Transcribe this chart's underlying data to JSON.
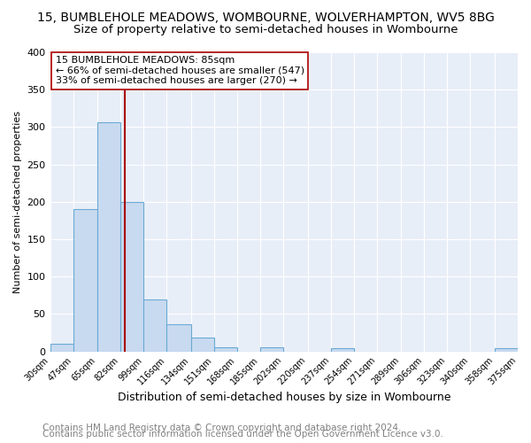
{
  "title": "15, BUMBLEHOLE MEADOWS, WOMBOURNE, WOLVERHAMPTON, WV5 8BG",
  "subtitle": "Size of property relative to semi-detached houses in Wombourne",
  "xlabel": "Distribution of semi-detached houses by size in Wombourne",
  "ylabel": "Number of semi-detached properties",
  "bin_edges": [
    30,
    47,
    65,
    82,
    99,
    116,
    134,
    151,
    168,
    185,
    202,
    220,
    237,
    254,
    271,
    289,
    306,
    323,
    340,
    358,
    375
  ],
  "bin_counts": [
    10,
    190,
    307,
    200,
    70,
    36,
    18,
    6,
    0,
    5,
    0,
    0,
    4,
    0,
    0,
    0,
    0,
    0,
    0,
    4
  ],
  "bar_color": "#c8daf0",
  "bar_edge_color": "#6aaad4",
  "property_size": 85,
  "vline_color": "#aa0000",
  "annotation_text": "15 BUMBLEHOLE MEADOWS: 85sqm\n← 66% of semi-detached houses are smaller (547)\n33% of semi-detached houses are larger (270) →",
  "annotation_box_edge_color": "#aa0000",
  "ylim": [
    0,
    400
  ],
  "yticks": [
    0,
    50,
    100,
    150,
    200,
    250,
    300,
    350,
    400
  ],
  "tick_labels": [
    "30sqm",
    "47sqm",
    "65sqm",
    "82sqm",
    "99sqm",
    "116sqm",
    "134sqm",
    "151sqm",
    "168sqm",
    "185sqm",
    "202sqm",
    "220sqm",
    "237sqm",
    "254sqm",
    "271sqm",
    "289sqm",
    "306sqm",
    "323sqm",
    "340sqm",
    "358sqm",
    "375sqm"
  ],
  "footer1": "Contains HM Land Registry data © Crown copyright and database right 2024.",
  "footer2": "Contains public sector information licensed under the Open Government Licence v3.0.",
  "background_color": "#ffffff",
  "plot_bg_color": "#e8eef8",
  "title_fontsize": 10,
  "subtitle_fontsize": 9.5,
  "xlabel_fontsize": 9,
  "ylabel_fontsize": 8,
  "footer_fontsize": 7.5,
  "grid_color": "#ffffff",
  "annotation_fontsize": 8
}
